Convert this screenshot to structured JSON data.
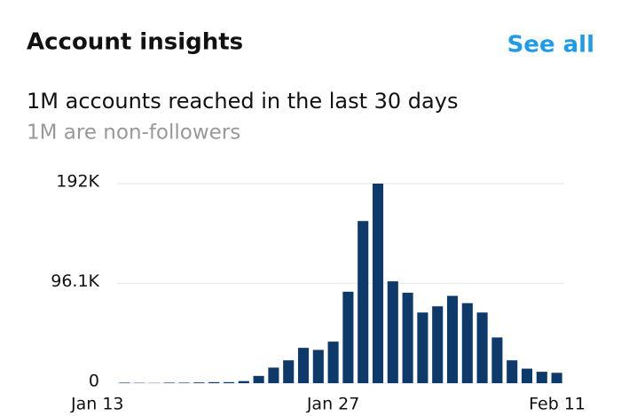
{
  "header": {
    "title": "Account insights",
    "link": "See all"
  },
  "summary": {
    "reach": "1M accounts reached in the last 30 days",
    "non_followers": "1M are non-followers"
  },
  "chart_data": {
    "type": "bar",
    "color": "#0e3a6b",
    "grid": true,
    "categories": [
      "Jan 13",
      null,
      null,
      null,
      null,
      null,
      null,
      null,
      null,
      null,
      null,
      null,
      null,
      null,
      "Jan 27",
      null,
      null,
      null,
      null,
      null,
      null,
      null,
      null,
      null,
      null,
      null,
      null,
      null,
      null,
      "Feb 11"
    ],
    "values": [
      500,
      300,
      200,
      500,
      500,
      700,
      1000,
      1000,
      2000,
      7000,
      15000,
      22000,
      34000,
      32000,
      40000,
      88000,
      156000,
      192000,
      98000,
      87000,
      68000,
      74000,
      84000,
      77000,
      68000,
      44000,
      22000,
      14000,
      11000,
      10000
    ],
    "ylim": [
      0,
      192000
    ],
    "yticks": [
      0,
      {
        "value": 96100,
        "label": "96.1K"
      },
      {
        "value": 192000,
        "label": "192K"
      }
    ]
  }
}
